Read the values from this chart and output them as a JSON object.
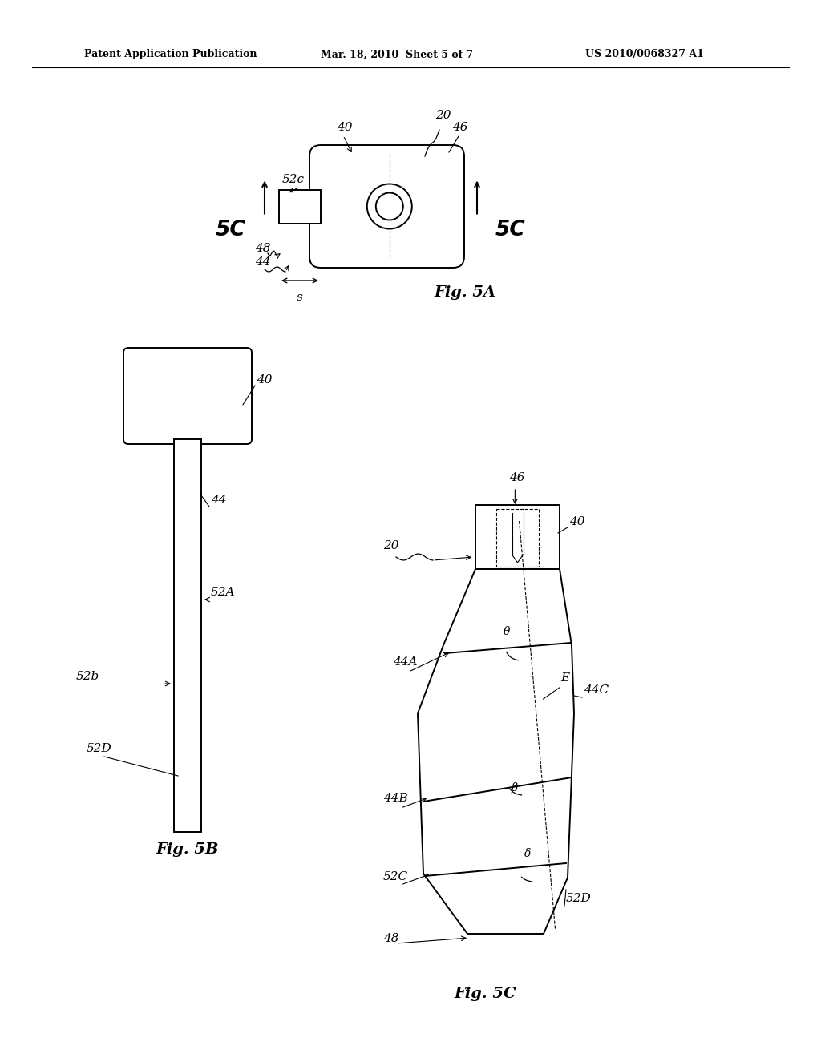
{
  "bg_color": "#ffffff",
  "header_text1": "Patent Application Publication",
  "header_text2": "Mar. 18, 2010  Sheet 5 of 7",
  "header_text3": "US 2010/0068327 A1",
  "fig5A_label": "Fig. 5A",
  "fig5B_label": "Fig. 5B",
  "fig5C_label": "Fig. 5C"
}
